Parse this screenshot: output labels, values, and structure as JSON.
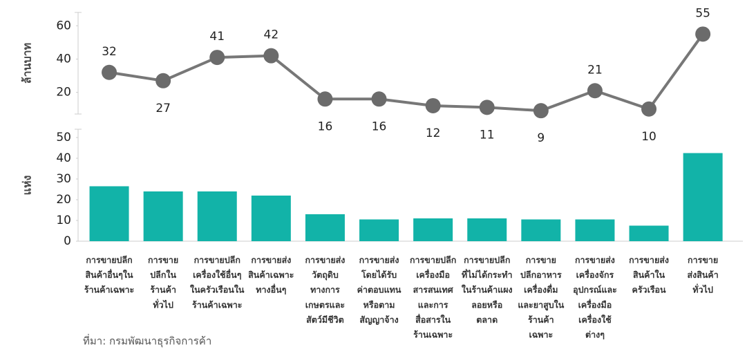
{
  "source": "ที่มา: กรมพัฒนาธุรกิจการค้า",
  "chart_data": [
    {
      "type": "line",
      "ylabel": "ล้านบาท",
      "color": "#777777",
      "marker_color": "#6b6b6b",
      "values": [
        32,
        27,
        41,
        42,
        16,
        16,
        12,
        11,
        9,
        21,
        10,
        55
      ],
      "ylim": [
        7,
        68
      ],
      "yticks": [
        20,
        40,
        60
      ]
    },
    {
      "type": "bar",
      "ylabel": "แห่ง",
      "color": "#12b3a8",
      "categories": [
        [
          "การขายปลีก",
          "สินค้าอื่นๆใน",
          "ร้านค้าเฉพาะ"
        ],
        [
          "การขาย",
          "ปลีกใน",
          "ร้านค้า",
          "ทั่วไป"
        ],
        [
          "การขายปลีก",
          "เครื่องใช้อื่นๆ",
          "ในครัวเรือนใน",
          "ร้านค้าเฉพาะ"
        ],
        [
          "การขายส่ง",
          "สินค้าเฉพาะ",
          "ทางอื่นๆ"
        ],
        [
          "การขายส่ง",
          "วัตถุดิบ",
          "ทางการ",
          "เกษตรและ",
          "สัตว์มีชีวิต"
        ],
        [
          "การขายส่ง",
          "โดยได้รับ",
          "ค่าตอบแทน",
          "หรือตาม",
          "สัญญาจ้าง"
        ],
        [
          "การขายปลีก",
          "เครื่องมือ",
          "สารสนเทศ",
          "และการ",
          "สื่อสารใน",
          "ร้านเฉพาะ"
        ],
        [
          "การขายปลีก",
          "ที่ไม่ได้กระทำ",
          "ในร้านค้าแผง",
          "ลอยหรือ",
          "ตลาด"
        ],
        [
          "การขาย",
          "ปลีกอาหาร",
          "เครื่องดื่ม",
          "และยาสูบใน",
          "ร้านค้า",
          "เฉพาะ"
        ],
        [
          "การขายส่ง",
          "เครื่องจักร",
          "อุปกรณ์และ",
          "เครื่องมือ",
          "เครื่องใช้",
          "ต่างๆ"
        ],
        [
          "การขายส่ง",
          "สินค้าใน",
          "ครัวเรือน"
        ],
        [
          "การขาย",
          "ส่งสินค้า",
          "ทั่วไป"
        ]
      ],
      "values": [
        26.5,
        24,
        24,
        22,
        13,
        10.5,
        11,
        11,
        10.5,
        10.5,
        7.5,
        42.5
      ],
      "ylim": [
        0,
        54
      ],
      "yticks": [
        0,
        10,
        20,
        30,
        40,
        50
      ]
    }
  ]
}
